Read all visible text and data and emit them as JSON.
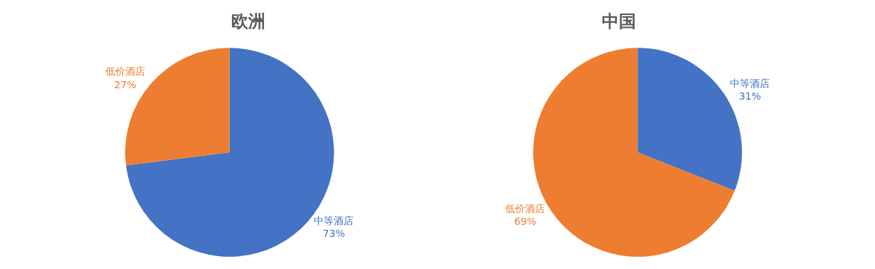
{
  "chart_data": [
    {
      "type": "pie",
      "title": "欧洲",
      "categories": [
        "中等酒店",
        "低价酒店"
      ],
      "values": [
        73,
        27
      ],
      "colors": [
        "#4472c4",
        "#ed7d31"
      ],
      "value_labels": [
        "73%",
        "27%"
      ],
      "legend": false
    },
    {
      "type": "pie",
      "title": "中国",
      "categories": [
        "中等酒店",
        "低价酒店"
      ],
      "values": [
        31,
        69
      ],
      "colors": [
        "#4472c4",
        "#ed7d31"
      ],
      "value_labels": [
        "31%",
        "69%"
      ],
      "legend": false
    }
  ]
}
